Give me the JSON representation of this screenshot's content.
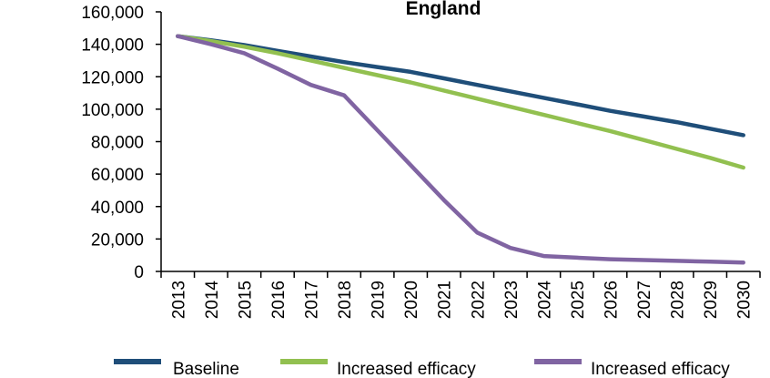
{
  "chart_data": {
    "type": "line",
    "title": "England",
    "xlabel": "",
    "ylabel": "",
    "x": [
      "2013",
      "2014",
      "2015",
      "2016",
      "2017",
      "2018",
      "2019",
      "2020",
      "2021",
      "2022",
      "2023",
      "2024",
      "2025",
      "2026",
      "2027",
      "2028",
      "2029",
      "2030"
    ],
    "ylim": [
      0,
      160000
    ],
    "yticks": [
      "0",
      "20,000",
      "40,000",
      "60,000",
      "80,000",
      "100,000",
      "120,000",
      "140,000",
      "160,000"
    ],
    "grid": false,
    "legend": "bottom",
    "series": [
      {
        "name": "Baseline",
        "color": "#1f4e79",
        "values": [
          145000,
          142500,
          139500,
          136000,
          132500,
          129000,
          126000,
          123000,
          119000,
          115000,
          111000,
          107000,
          103000,
          99000,
          95500,
          92000,
          88000,
          84000
        ]
      },
      {
        "name": "Increased efficacy",
        "color": "#92c050",
        "values": [
          145000,
          142000,
          138500,
          134500,
          130000,
          125500,
          121000,
          116500,
          111500,
          106500,
          101500,
          96500,
          91500,
          86500,
          81000,
          75500,
          70000,
          64000
        ]
      },
      {
        "name": "Increased efficacy",
        "color": "#8064a2",
        "values": [
          145000,
          140000,
          134500,
          125000,
          115000,
          108500,
          87000,
          65500,
          44000,
          24000,
          14500,
          9500,
          8500,
          7500,
          7000,
          6500,
          6000,
          5500
        ]
      }
    ]
  }
}
